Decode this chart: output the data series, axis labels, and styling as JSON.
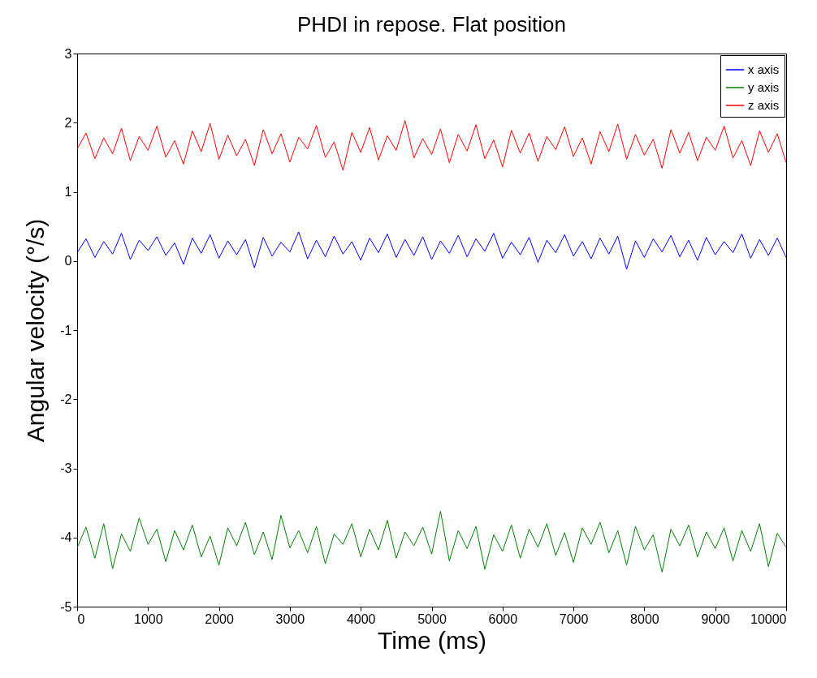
{
  "chart_data": {
    "type": "line",
    "title": "PHDI in repose. Flat position",
    "xlabel": "Time (ms)",
    "ylabel": "Angular velocity (°/s)",
    "x": [
      0,
      125,
      250,
      375,
      500,
      625,
      750,
      875,
      1000,
      1125,
      1250,
      1375,
      1500,
      1625,
      1750,
      1875,
      2000,
      2125,
      2250,
      2375,
      2500,
      2625,
      2750,
      2875,
      3000,
      3125,
      3250,
      3375,
      3500,
      3625,
      3750,
      3875,
      4000,
      4125,
      4250,
      4375,
      4500,
      4625,
      4750,
      4875,
      5000,
      5125,
      5250,
      5375,
      5500,
      5625,
      5750,
      5875,
      6000,
      6125,
      6250,
      6375,
      6500,
      6625,
      6750,
      6875,
      7000,
      7125,
      7250,
      7375,
      7500,
      7625,
      7750,
      7875,
      8000,
      8125,
      8250,
      8375,
      8500,
      8625,
      8750,
      8875,
      9000,
      9125,
      9250,
      9375,
      9500,
      9625,
      9750,
      9875,
      10000
    ],
    "series": [
      {
        "name": "x axis",
        "color": "#0000ff",
        "values": [
          0.12,
          0.32,
          0.05,
          0.28,
          0.1,
          0.4,
          0.02,
          0.3,
          0.15,
          0.35,
          0.08,
          0.26,
          -0.05,
          0.33,
          0.11,
          0.38,
          0.04,
          0.29,
          0.09,
          0.31,
          -0.1,
          0.34,
          0.07,
          0.27,
          0.13,
          0.42,
          0.03,
          0.3,
          0.06,
          0.36,
          0.1,
          0.28,
          0.01,
          0.33,
          0.12,
          0.39,
          0.05,
          0.31,
          0.08,
          0.35,
          0.02,
          0.29,
          0.11,
          0.37,
          0.06,
          0.32,
          0.14,
          0.4,
          0.04,
          0.27,
          0.09,
          0.34,
          -0.02,
          0.3,
          0.12,
          0.38,
          0.07,
          0.28,
          0.03,
          0.33,
          0.1,
          0.36,
          -0.12,
          0.29,
          0.05,
          0.32,
          0.13,
          0.37,
          0.06,
          0.3,
          0.01,
          0.34,
          0.09,
          0.28,
          0.12,
          0.39,
          0.04,
          0.31,
          0.08,
          0.33,
          0.05
        ]
      },
      {
        "name": "y axis",
        "color": "#008000",
        "values": [
          -4.15,
          -3.85,
          -4.3,
          -3.8,
          -4.45,
          -3.95,
          -4.2,
          -3.72,
          -4.1,
          -3.88,
          -4.35,
          -3.9,
          -4.18,
          -3.82,
          -4.28,
          -3.98,
          -4.4,
          -3.86,
          -4.12,
          -3.78,
          -4.25,
          -3.92,
          -4.32,
          -3.68,
          -4.15,
          -3.9,
          -4.22,
          -3.84,
          -4.38,
          -3.95,
          -4.1,
          -3.8,
          -4.28,
          -3.88,
          -4.18,
          -3.75,
          -4.3,
          -3.92,
          -4.12,
          -3.85,
          -4.24,
          -3.62,
          -4.34,
          -3.9,
          -4.16,
          -3.84,
          -4.46,
          -3.96,
          -4.2,
          -3.82,
          -4.3,
          -3.88,
          -4.14,
          -3.8,
          -4.26,
          -3.93,
          -4.36,
          -3.86,
          -4.1,
          -3.78,
          -4.22,
          -3.9,
          -4.4,
          -3.84,
          -4.18,
          -3.96,
          -4.5,
          -3.88,
          -4.12,
          -3.82,
          -4.28,
          -3.92,
          -4.16,
          -3.86,
          -4.34,
          -3.9,
          -4.2,
          -3.8,
          -4.42,
          -3.94,
          -4.14
        ]
      },
      {
        "name": "z axis",
        "color": "#ff0000",
        "values": [
          1.62,
          1.85,
          1.48,
          1.78,
          1.55,
          1.92,
          1.45,
          1.8,
          1.6,
          1.95,
          1.5,
          1.74,
          1.4,
          1.88,
          1.58,
          1.99,
          1.47,
          1.82,
          1.52,
          1.76,
          1.38,
          1.9,
          1.55,
          1.84,
          1.43,
          1.79,
          1.62,
          1.96,
          1.5,
          1.72,
          1.31,
          1.86,
          1.57,
          1.93,
          1.46,
          1.81,
          1.6,
          2.03,
          1.49,
          1.77,
          1.54,
          1.91,
          1.42,
          1.83,
          1.59,
          1.97,
          1.48,
          1.75,
          1.36,
          1.89,
          1.56,
          1.85,
          1.44,
          1.8,
          1.61,
          1.94,
          1.51,
          1.78,
          1.4,
          1.87,
          1.58,
          1.98,
          1.47,
          1.83,
          1.53,
          1.76,
          1.34,
          1.9,
          1.56,
          1.86,
          1.45,
          1.79,
          1.6,
          1.95,
          1.49,
          1.74,
          1.38,
          1.88,
          1.57,
          1.84,
          1.42
        ]
      }
    ],
    "xlim": [
      0,
      10000
    ],
    "xticks": [
      0,
      1000,
      2000,
      3000,
      4000,
      5000,
      6000,
      7000,
      8000,
      9000,
      10000
    ],
    "ylim": [
      -5,
      3
    ],
    "yticks": [
      -5,
      -4,
      -3,
      -2,
      -1,
      0,
      1,
      2,
      3
    ],
    "grid": false,
    "legend": "top right",
    "line_style": "solid"
  }
}
